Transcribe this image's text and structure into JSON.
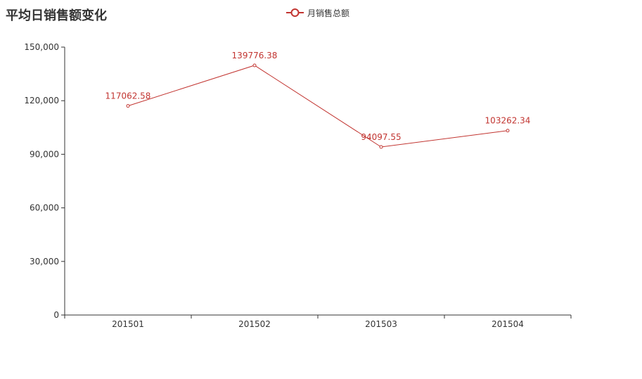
{
  "chart_data": {
    "type": "line",
    "title": "平均日销售额变化",
    "categories": [
      "201501",
      "201502",
      "201503",
      "201504"
    ],
    "series": [
      {
        "name": "月销售总额",
        "values": [
          117062.58,
          139776.38,
          94097.55,
          103262.34
        ],
        "labels": [
          "117062.58",
          "139776.38",
          "94097.55",
          "103262.34"
        ]
      }
    ],
    "ylim": [
      0,
      150000
    ],
    "yticks": [
      0,
      30000,
      60000,
      90000,
      120000,
      150000
    ],
    "ytick_labels": [
      "0",
      "30,000",
      "60,000",
      "90,000",
      "120,000",
      "150,000"
    ],
    "grid": false,
    "legend": "top-center"
  },
  "colors": {
    "series": "#c23531",
    "axis": "#333333",
    "text": "#333333"
  }
}
